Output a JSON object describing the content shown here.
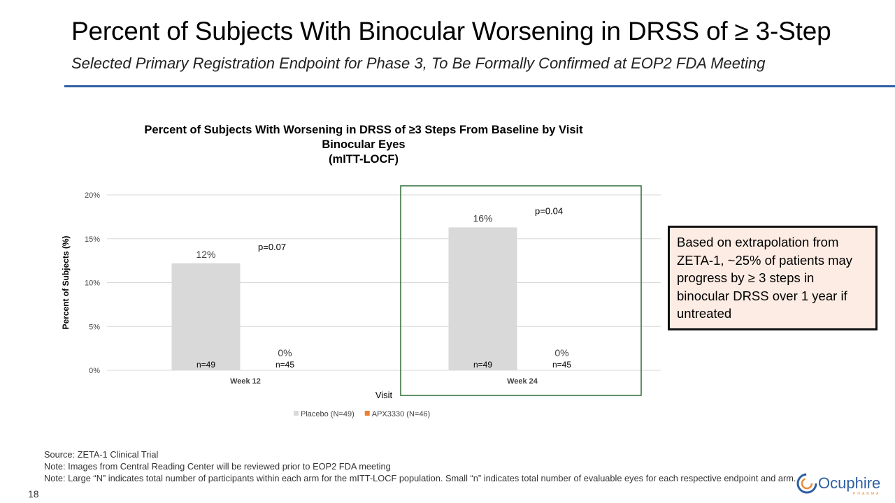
{
  "slide": {
    "title": "Percent of Subjects With Binocular Worsening in DRSS of ≥ 3-Step",
    "subtitle": "Selected Primary Registration Endpoint for Phase 3, To Be Formally Confirmed at EOP2 FDA Meeting",
    "accent_color": "#2e5fa3",
    "page_number": "18"
  },
  "callout": {
    "text": "Based on extrapolation from ZETA-1, ~25% of patients may progress by ≥ 3 steps in binocular DRSS over 1 year if untreated",
    "background": "#fdece4",
    "border": "#111111"
  },
  "footnotes": [
    "Source: ZETA-1 Clinical Trial",
    "Note: Images from Central Reading Center will be reviewed prior to EOP2 FDA meeting",
    "Note: Large “N” indicates total number of participants within each arm for the mITT-LOCF population. Small “n” indicates total number of evaluable eyes for each respective endpoint and arm."
  ],
  "logo": {
    "text": "Ocuphire",
    "sub_text": "PHARMA",
    "color": "#2e5fa3"
  },
  "chart_data": {
    "type": "bar",
    "title_lines": [
      "Percent of Subjects With Worsening in DRSS of ≥3 Steps From Baseline by Visit",
      "Binocular Eyes",
      "(mITT-LOCF)"
    ],
    "xlabel": "Visit",
    "ylabel": "Percent of Subjects (%)",
    "ylim": [
      0,
      20
    ],
    "yticks": [
      0,
      5,
      10,
      15,
      20
    ],
    "ytick_labels": [
      "0%",
      "5%",
      "10%",
      "15%",
      "20%"
    ],
    "grid": true,
    "legend_position": "bottom",
    "categories": [
      "Week 12",
      "Week 24"
    ],
    "series": [
      {
        "name": "Placebo (N=49)",
        "color": "#d9d9d9",
        "values": [
          12.2,
          16.3
        ],
        "labels": [
          "12%",
          "16%"
        ],
        "n_labels": [
          "n=49",
          "n=49"
        ]
      },
      {
        "name": "APX3330 (N=46)",
        "color": "#ed7d31",
        "values": [
          0,
          0
        ],
        "labels": [
          "0%",
          "0%"
        ],
        "n_labels": [
          "n=45",
          "n=45"
        ]
      }
    ],
    "annotations": [
      {
        "category": "Week 12",
        "text": "p=0.07"
      },
      {
        "category": "Week 24",
        "text": "p=0.04"
      }
    ],
    "highlight": {
      "category": "Week 24",
      "color": "#2e6b35"
    }
  }
}
